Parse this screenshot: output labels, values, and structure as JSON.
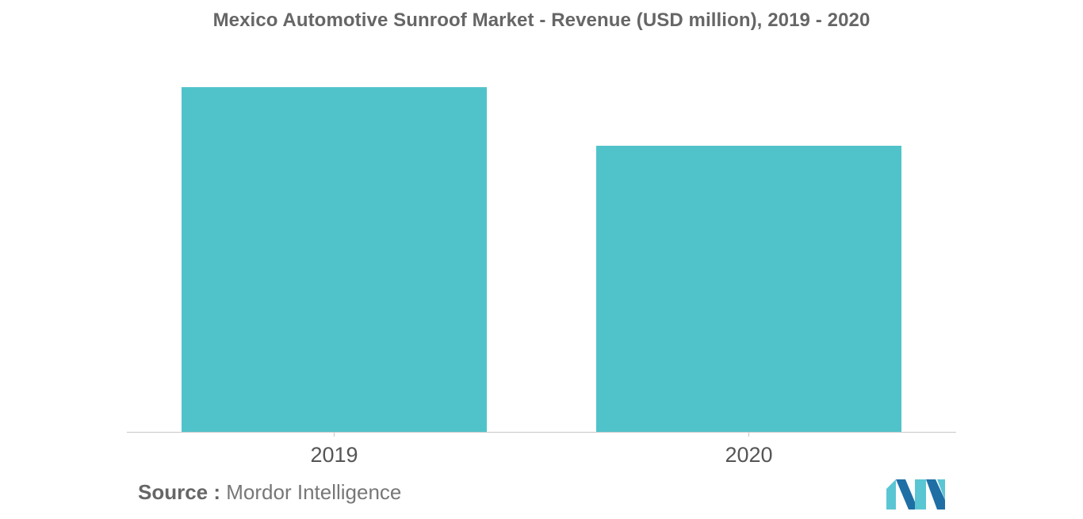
{
  "colors": {
    "bar": "#50c3ca",
    "axis": "#c8c8c8",
    "title_text": "#666666",
    "tick_text": "#555555",
    "logo_light": "#5bc6d3",
    "logo_dark": "#1f6fa5"
  },
  "source": {
    "label": "Source :",
    "value": "Mordor Intelligence"
  },
  "logo": {
    "icon": "mordor-intelligence-logo-icon"
  },
  "chart_data": {
    "type": "bar",
    "title": "Mexico Automotive Sunroof Market - Revenue (USD million), 2019 - 2020",
    "categories": [
      "2019",
      "2020"
    ],
    "values": [
      100,
      83
    ],
    "xlabel": "",
    "ylabel": "",
    "ylim": [
      0,
      100
    ],
    "grid": false,
    "legend": "none"
  }
}
